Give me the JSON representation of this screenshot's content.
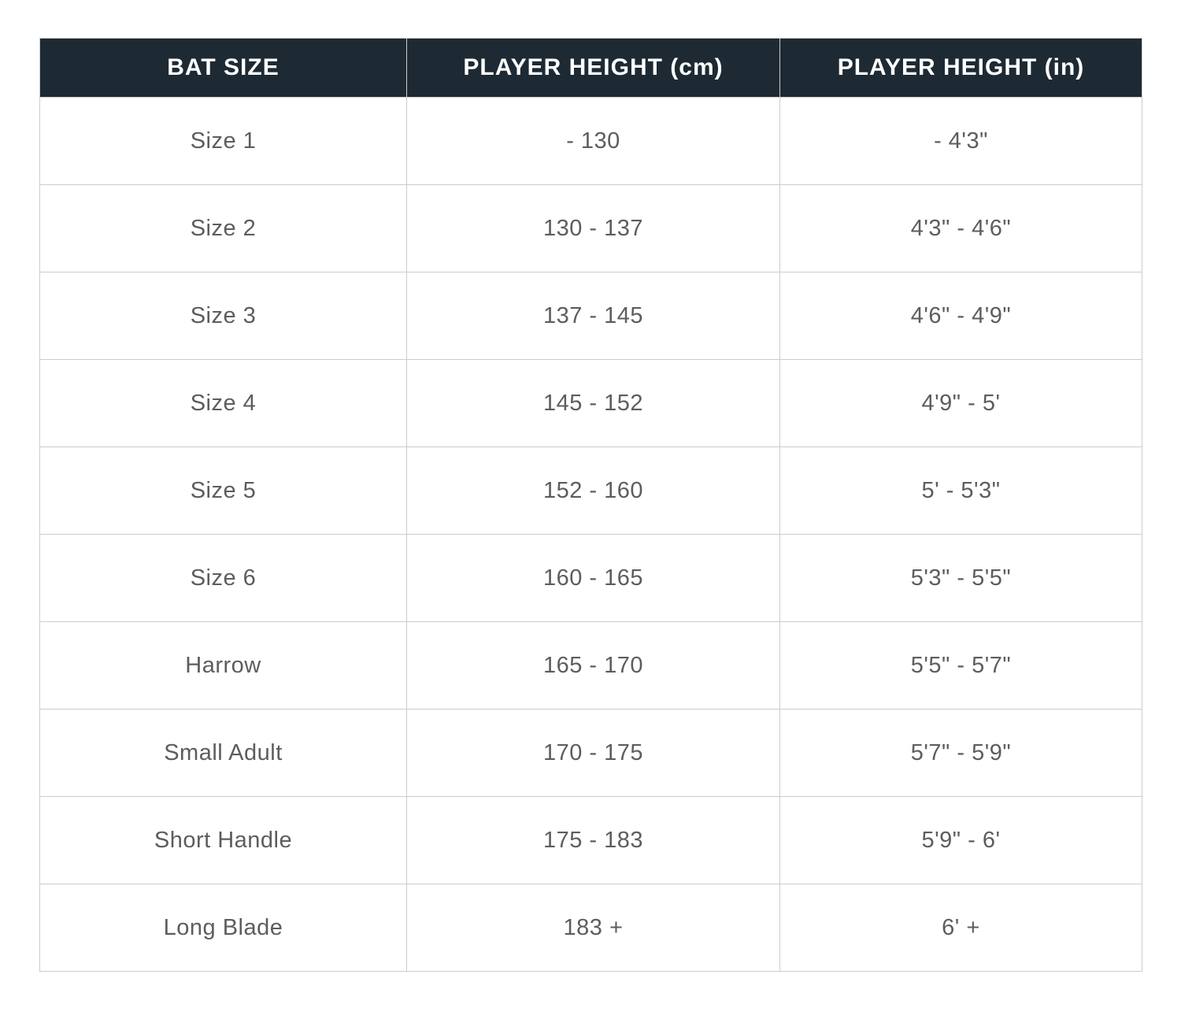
{
  "chart_data": {
    "type": "table",
    "columns": [
      "BAT SIZE",
      "PLAYER HEIGHT (cm)",
      "PLAYER HEIGHT (in)"
    ],
    "rows": [
      [
        "Size 1",
        "- 130",
        "- 4'3\""
      ],
      [
        "Size 2",
        "130 - 137",
        "4'3\" - 4'6\""
      ],
      [
        "Size 3",
        "137 - 145",
        "4'6\" - 4'9\""
      ],
      [
        "Size 4",
        "145 - 152",
        "4'9\" - 5'"
      ],
      [
        "Size 5",
        "152 - 160",
        "5' - 5'3\""
      ],
      [
        "Size 6",
        "160 - 165",
        "5'3\" - 5'5\""
      ],
      [
        "Harrow",
        "165 - 170",
        "5'5\" - 5'7\""
      ],
      [
        "Small Adult",
        "170 - 175",
        "5'7\" - 5'9\""
      ],
      [
        "Short Handle",
        "175 - 183",
        "5'9\" - 6'"
      ],
      [
        "Long Blade",
        "183 +",
        "6' +"
      ]
    ],
    "colors": {
      "header_bg": "#1e2a33",
      "header_text": "#ffffff",
      "body_text": "#5b5d5f",
      "border": "#cccccc",
      "page_bg": "#ffffff"
    }
  }
}
